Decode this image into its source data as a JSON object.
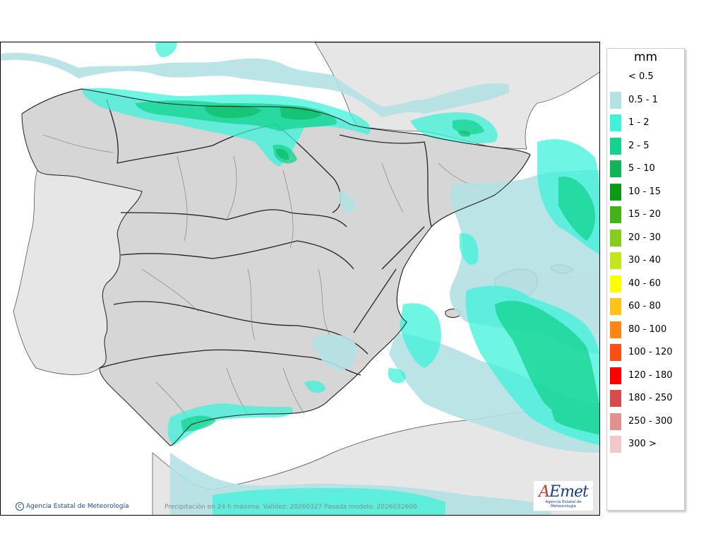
{
  "legend": {
    "unit": "mm",
    "classes": [
      {
        "label": "< 0.5",
        "color": "#ffffff"
      },
      {
        "label": "0.5 - 1",
        "color": "#b4e1e4"
      },
      {
        "label": "1 - 2",
        "color": "#3ff2d9"
      },
      {
        "label": "2 - 5",
        "color": "#14d38f"
      },
      {
        "label": "5 - 10",
        "color": "#0db558"
      },
      {
        "label": "10 - 15",
        "color": "#0b9a16"
      },
      {
        "label": "15 - 20",
        "color": "#44b31a"
      },
      {
        "label": "20 - 30",
        "color": "#86ce1b"
      },
      {
        "label": "30 - 40",
        "color": "#c4e61a"
      },
      {
        "label": "40 - 60",
        "color": "#ffff00"
      },
      {
        "label": "60 - 80",
        "color": "#ffc21a"
      },
      {
        "label": "80 - 100",
        "color": "#ff8514"
      },
      {
        "label": "100 - 120",
        "color": "#ff4d14"
      },
      {
        "label": "120 - 180",
        "color": "#ff0000"
      },
      {
        "label": "180 - 250",
        "color": "#d44c4c"
      },
      {
        "label": "250 - 300",
        "color": "#e49090"
      },
      {
        "label": "300 >",
        "color": "#f2c9c9"
      }
    ]
  },
  "footer": {
    "agency": "Agencia Estatal de Meteorología",
    "caption": "Precipitación en 24 h máxima. Validez: 20260327 Pasada modelo: 2026032600"
  },
  "logo": {
    "text": "AEmet",
    "subtitle": "Agencia Estatal de Meteorología"
  },
  "colors": {
    "land": "#d6d6d6",
    "other_land": "#e6e6e6",
    "sea": "#ffffff",
    "borders": "#1a1a1a"
  }
}
